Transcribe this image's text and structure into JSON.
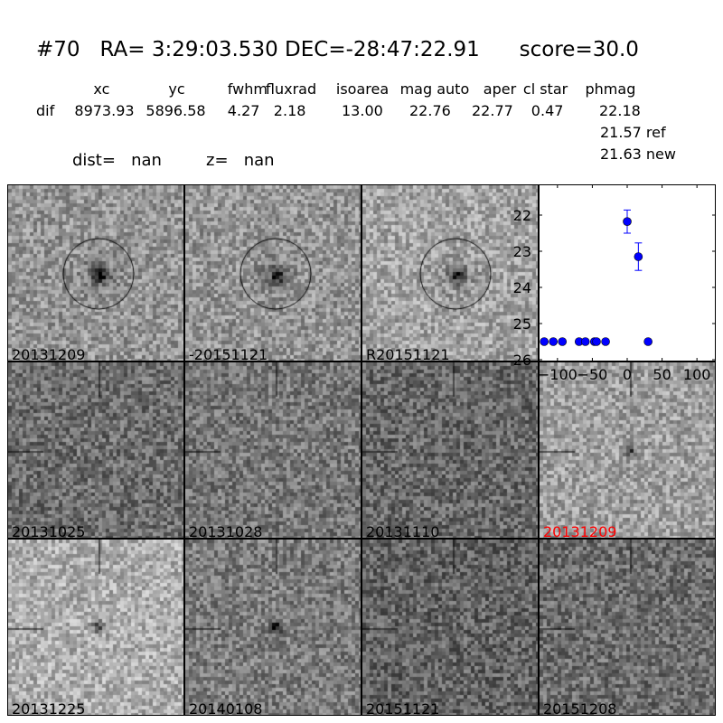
{
  "header": {
    "title": "#70   RA= 3:29:03.530 DEC=-28:47:22.91      score=30.0",
    "columns": [
      "xc",
      "yc",
      "fwhm",
      "fluxrad",
      "isoarea",
      "mag auto",
      "aper",
      "cl star",
      "phmag"
    ],
    "row_label": "dif",
    "values": [
      "8973.93",
      "5896.58",
      "4.27",
      "2.18",
      "13.00",
      "22.76",
      "22.77",
      "0.47",
      "22.18"
    ],
    "ref": "21.57 ref",
    "new": "21.63 new",
    "dist": "dist=   nan",
    "z": "z=   nan"
  },
  "stamps": [
    {
      "label": "20131209",
      "circle": true,
      "bg": 150,
      "blob": true
    },
    {
      "label": "-20151121",
      "circle": true,
      "bg": 150,
      "blob": true
    },
    {
      "label": "R20151121",
      "circle": true,
      "bg": 165,
      "blob": true
    },
    {
      "label": "20131025",
      "bg": 110
    },
    {
      "label": "20131028",
      "bg": 120
    },
    {
      "label": "20131110",
      "bg": 105
    },
    {
      "label": "20131209",
      "bg": 160,
      "blob": true,
      "label_color": "#ff0000"
    },
    {
      "label": "20131225",
      "bg": 175,
      "blob": true
    },
    {
      "label": "20140108",
      "bg": 125,
      "blob": true
    },
    {
      "label": "20151121",
      "bg": 100
    },
    {
      "label": "20151208",
      "bg": 110
    }
  ],
  "chart_data": {
    "type": "scatter",
    "xlim": [
      -127,
      127
    ],
    "ylim": [
      26.05,
      21.15
    ],
    "y_inverted": true,
    "xticks": [
      -100,
      -50,
      0,
      50,
      100
    ],
    "yticks": [
      22,
      23,
      24,
      25,
      26
    ],
    "color": "#0000ff",
    "points": [
      {
        "x": -119,
        "y": 25.5
      },
      {
        "x": -106,
        "y": 25.5
      },
      {
        "x": -93,
        "y": 25.5
      },
      {
        "x": -69,
        "y": 25.5
      },
      {
        "x": -60,
        "y": 25.5
      },
      {
        "x": -47,
        "y": 25.5
      },
      {
        "x": -44,
        "y": 25.5
      },
      {
        "x": -31,
        "y": 25.5
      },
      {
        "x": 0,
        "y": 22.18,
        "err": 0.32
      },
      {
        "x": 16,
        "y": 23.15,
        "err": 0.38
      },
      {
        "x": 30,
        "y": 25.5
      }
    ]
  }
}
